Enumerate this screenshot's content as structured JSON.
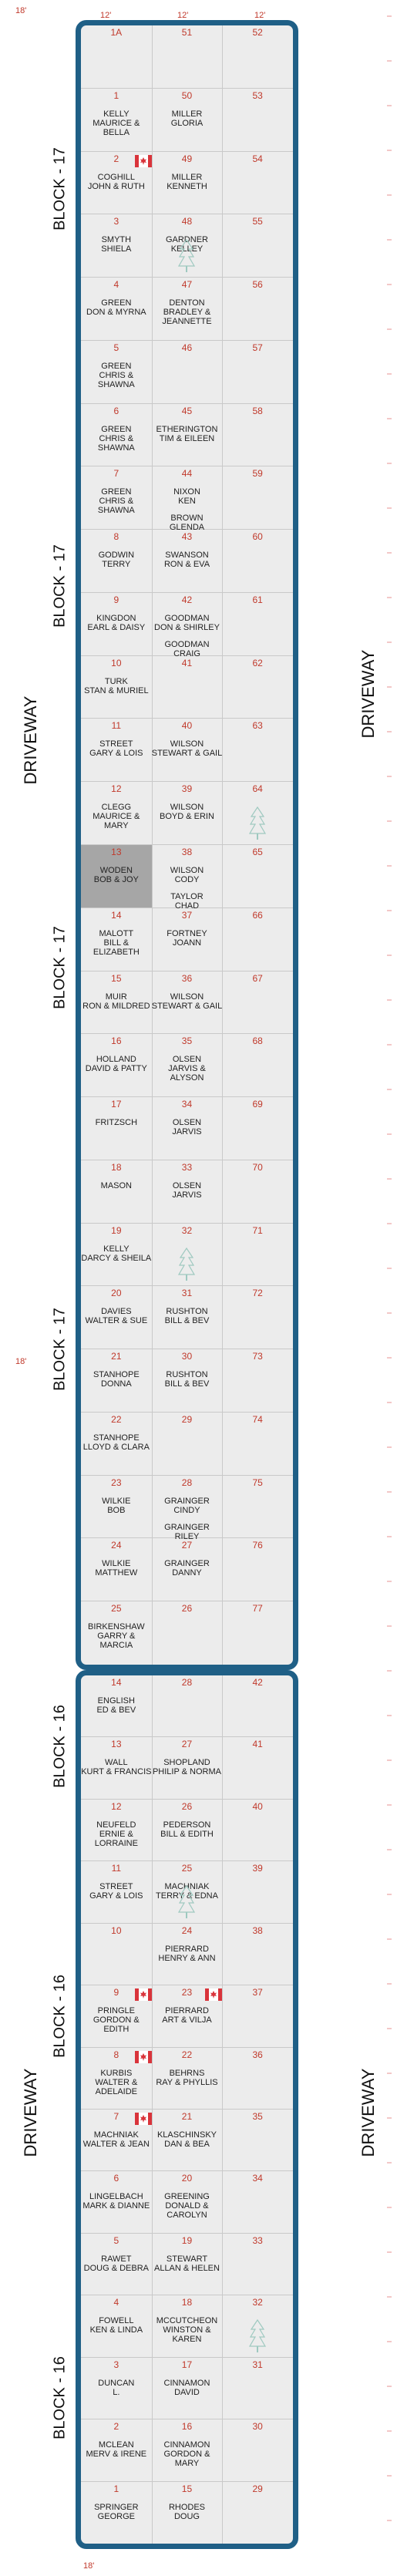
{
  "colors": {
    "border": "#1f5f86",
    "plot_fill": "#ececec",
    "highlight": "#a6a6a6",
    "number": "#c0392b",
    "tree": "#9ec9c0",
    "flag": "#d9343b"
  },
  "dimensions": {
    "col_width": "12'",
    "row_height": "5'",
    "gap_width": "18'"
  },
  "labels": {
    "driveway": "DRIVEWAY",
    "block17": "BLOCK - 17",
    "block16": "BLOCK - 16"
  },
  "block17": {
    "plots": [
      {
        "n": "1A",
        "names": []
      },
      {
        "n": "51",
        "names": []
      },
      {
        "n": "52",
        "names": []
      },
      {
        "n": "1",
        "names": [
          "KELLY",
          "MAURICE & BELLA"
        ]
      },
      {
        "n": "50",
        "names": [
          "MILLER",
          "GLORIA"
        ]
      },
      {
        "n": "53",
        "names": []
      },
      {
        "n": "2",
        "names": [
          "COGHILL",
          "JOHN & RUTH"
        ]
      },
      {
        "n": "49",
        "names": [
          "MILLER",
          "KENNETH"
        ]
      },
      {
        "n": "54",
        "names": []
      },
      {
        "n": "3",
        "names": [
          "SMYTH",
          "SHIELA"
        ]
      },
      {
        "n": "48",
        "names": [
          "GARDNER",
          "KELLEY"
        ]
      },
      {
        "n": "55",
        "names": []
      },
      {
        "n": "4",
        "names": [
          "GREEN",
          "DON & MYRNA"
        ]
      },
      {
        "n": "47",
        "names": [
          "DENTON",
          "BRADLEY &",
          "JEANNETTE"
        ]
      },
      {
        "n": "56",
        "names": []
      },
      {
        "n": "5",
        "names": [
          "GREEN",
          "CHRIS & SHAWNA"
        ]
      },
      {
        "n": "46",
        "names": []
      },
      {
        "n": "57",
        "names": []
      },
      {
        "n": "6",
        "names": [
          "GREEN",
          "CHRIS & SHAWNA"
        ]
      },
      {
        "n": "45",
        "names": [
          "ETHERINGTON",
          "TIM & EILEEN"
        ]
      },
      {
        "n": "58",
        "names": []
      },
      {
        "n": "7",
        "names": [
          "GREEN",
          "CHRIS & SHAWNA"
        ]
      },
      {
        "n": "44",
        "names": [
          "NIXON",
          "KEN",
          "BROWN",
          "GLENDA"
        ]
      },
      {
        "n": "59",
        "names": []
      },
      {
        "n": "8",
        "names": [
          "GODWIN",
          "TERRY"
        ]
      },
      {
        "n": "43",
        "names": [
          "SWANSON",
          "RON & EVA"
        ]
      },
      {
        "n": "60",
        "names": []
      },
      {
        "n": "9",
        "names": [
          "KINGDON",
          "EARL & DAISY"
        ]
      },
      {
        "n": "42",
        "names": [
          "GOODMAN",
          "DON & SHIRLEY",
          "GOODMAN",
          "CRAIG"
        ]
      },
      {
        "n": "61",
        "names": []
      },
      {
        "n": "10",
        "names": [
          "TURK",
          "STAN & MURIEL"
        ]
      },
      {
        "n": "41",
        "names": []
      },
      {
        "n": "62",
        "names": []
      },
      {
        "n": "11",
        "names": [
          "STREET",
          "GARY & LOIS"
        ]
      },
      {
        "n": "40",
        "names": [
          "WILSON",
          "STEWART & GAIL"
        ]
      },
      {
        "n": "63",
        "names": []
      },
      {
        "n": "12",
        "names": [
          "CLEGG",
          "MAURICE & MARY"
        ]
      },
      {
        "n": "39",
        "names": [
          "WILSON",
          "BOYD & ERIN"
        ]
      },
      {
        "n": "64",
        "names": []
      },
      {
        "n": "13",
        "names": [
          "WODEN",
          "BOB & JOY"
        ]
      },
      {
        "n": "38",
        "names": [
          "WILSON",
          "CODY",
          "TAYLOR",
          "CHAD"
        ]
      },
      {
        "n": "65",
        "names": []
      },
      {
        "n": "14",
        "names": [
          "MALOTT",
          "BILL & ELIZABETH"
        ]
      },
      {
        "n": "37",
        "names": [
          "FORTNEY",
          "JOANN"
        ]
      },
      {
        "n": "66",
        "names": []
      },
      {
        "n": "15",
        "names": [
          "MUIR",
          "RON & MILDRED"
        ]
      },
      {
        "n": "36",
        "names": [
          "WILSON",
          "STEWART & GAIL"
        ]
      },
      {
        "n": "67",
        "names": []
      },
      {
        "n": "16",
        "names": [
          "HOLLAND",
          "DAVID & PATTY"
        ]
      },
      {
        "n": "35",
        "names": [
          "OLSEN",
          "JARVIS & ALYSON"
        ]
      },
      {
        "n": "68",
        "names": []
      },
      {
        "n": "17",
        "names": [
          "FRITZSCH"
        ]
      },
      {
        "n": "34",
        "names": [
          "OLSEN",
          "JARVIS"
        ]
      },
      {
        "n": "69",
        "names": []
      },
      {
        "n": "18",
        "names": [
          "MASON"
        ]
      },
      {
        "n": "33",
        "names": [
          "OLSEN",
          "JARVIS"
        ]
      },
      {
        "n": "70",
        "names": []
      },
      {
        "n": "19",
        "names": [
          "KELLY",
          "DARCY & SHEILA"
        ]
      },
      {
        "n": "32",
        "names": []
      },
      {
        "n": "71",
        "names": []
      },
      {
        "n": "20",
        "names": [
          "DAVIES",
          "WALTER & SUE"
        ]
      },
      {
        "n": "31",
        "names": [
          "RUSHTON",
          "BILL & BEV"
        ]
      },
      {
        "n": "72",
        "names": []
      },
      {
        "n": "21",
        "names": [
          "STANHOPE",
          "DONNA"
        ]
      },
      {
        "n": "30",
        "names": [
          "RUSHTON",
          "BILL & BEV"
        ]
      },
      {
        "n": "73",
        "names": []
      },
      {
        "n": "22",
        "names": [
          "STANHOPE",
          "LLOYD & CLARA"
        ]
      },
      {
        "n": "29",
        "names": []
      },
      {
        "n": "74",
        "names": []
      },
      {
        "n": "23",
        "names": [
          "WILKIE",
          "BOB"
        ]
      },
      {
        "n": "28",
        "names": [
          "GRAINGER",
          "CINDY",
          "GRAINGER",
          "RILEY"
        ]
      },
      {
        "n": "75",
        "names": []
      },
      {
        "n": "24",
        "names": [
          "WILKIE",
          "MATTHEW"
        ]
      },
      {
        "n": "27",
        "names": [
          "GRAINGER",
          "DANNY"
        ]
      },
      {
        "n": "76",
        "names": []
      },
      {
        "n": "25",
        "names": [
          "BIRKENSHAW",
          "GARRY & MARCIA"
        ]
      },
      {
        "n": "26",
        "names": []
      },
      {
        "n": "77",
        "names": []
      }
    ]
  },
  "block16": {
    "plots": [
      {
        "n": "14",
        "names": [
          "ENGLISH",
          "ED & BEV"
        ]
      },
      {
        "n": "28",
        "names": []
      },
      {
        "n": "42",
        "names": []
      },
      {
        "n": "13",
        "names": [
          "WALL",
          "KURT & FRANCIS"
        ]
      },
      {
        "n": "27",
        "names": [
          "Shopland",
          "Philip & Norma"
        ]
      },
      {
        "n": "41",
        "names": []
      },
      {
        "n": "12",
        "names": [
          "NEUFELD",
          "ERNIE & LORRAINE"
        ]
      },
      {
        "n": "26",
        "names": [
          "PEDERSON",
          "BILL & EDITH"
        ]
      },
      {
        "n": "40",
        "names": []
      },
      {
        "n": "11",
        "names": [
          "STREET",
          "GARY & LOIS"
        ]
      },
      {
        "n": "25",
        "names": [
          "MACHNIAK",
          "TERRY & EDNA"
        ]
      },
      {
        "n": "39",
        "names": []
      },
      {
        "n": "10",
        "names": []
      },
      {
        "n": "24",
        "names": [
          "PIERRARD",
          "HENRY & ANN"
        ]
      },
      {
        "n": "38",
        "names": []
      },
      {
        "n": "9",
        "names": [
          "PRINGLE",
          "GORDON & EDITH"
        ]
      },
      {
        "n": "23",
        "names": [
          "PIERRARD",
          "ART & VILJA"
        ]
      },
      {
        "n": "37",
        "names": []
      },
      {
        "n": "8",
        "names": [
          "KURBIS",
          "WALTER &",
          "ADELAIDE"
        ]
      },
      {
        "n": "22",
        "names": [
          "BEHRNS",
          "RAY & PHYLLIS"
        ]
      },
      {
        "n": "36",
        "names": []
      },
      {
        "n": "7",
        "names": [
          "MACHNIAK",
          "WALTER & JEAN"
        ]
      },
      {
        "n": "21",
        "names": [
          "KLASCHINSKY",
          "DAN & BEA"
        ]
      },
      {
        "n": "35",
        "names": []
      },
      {
        "n": "6",
        "names": [
          "LINGELBACH",
          "MARK & DIANNE"
        ]
      },
      {
        "n": "20",
        "names": [
          "GREENING",
          "DONALD &",
          "CAROLYN"
        ]
      },
      {
        "n": "34",
        "names": []
      },
      {
        "n": "5",
        "names": [
          "RAWET",
          "DOUG & DEBRA"
        ]
      },
      {
        "n": "19",
        "names": [
          "STEWART",
          "ALLAN & HELEN"
        ]
      },
      {
        "n": "33",
        "names": []
      },
      {
        "n": "4",
        "names": [
          "FOWELL",
          "KEN & LINDA"
        ]
      },
      {
        "n": "18",
        "names": [
          "McCUTCHEON",
          "WINSTON & KAREN"
        ]
      },
      {
        "n": "32",
        "names": []
      },
      {
        "n": "3",
        "names": [
          "DUNCAN",
          "L."
        ]
      },
      {
        "n": "17",
        "names": [
          "CINNAMON",
          "DAVID"
        ]
      },
      {
        "n": "31",
        "names": []
      },
      {
        "n": "2",
        "names": [
          "McLEAN",
          "MERV & IRENE"
        ]
      },
      {
        "n": "16",
        "names": [
          "CINNAMON",
          "GORDON & MARY"
        ]
      },
      {
        "n": "30",
        "names": []
      },
      {
        "n": "1",
        "names": [
          "SPRINGER",
          "GEORGE"
        ]
      },
      {
        "n": "15",
        "names": [
          "RHODES",
          "DOUG"
        ]
      },
      {
        "n": "29",
        "names": []
      }
    ]
  },
  "highlight_plot": "13",
  "trees": [
    "block17-48",
    "block17-64",
    "block17-32",
    "block16-25",
    "block16-32"
  ],
  "flags": [
    "block17-2",
    "block16-9",
    "block16-23",
    "block16-8",
    "block16-7"
  ]
}
